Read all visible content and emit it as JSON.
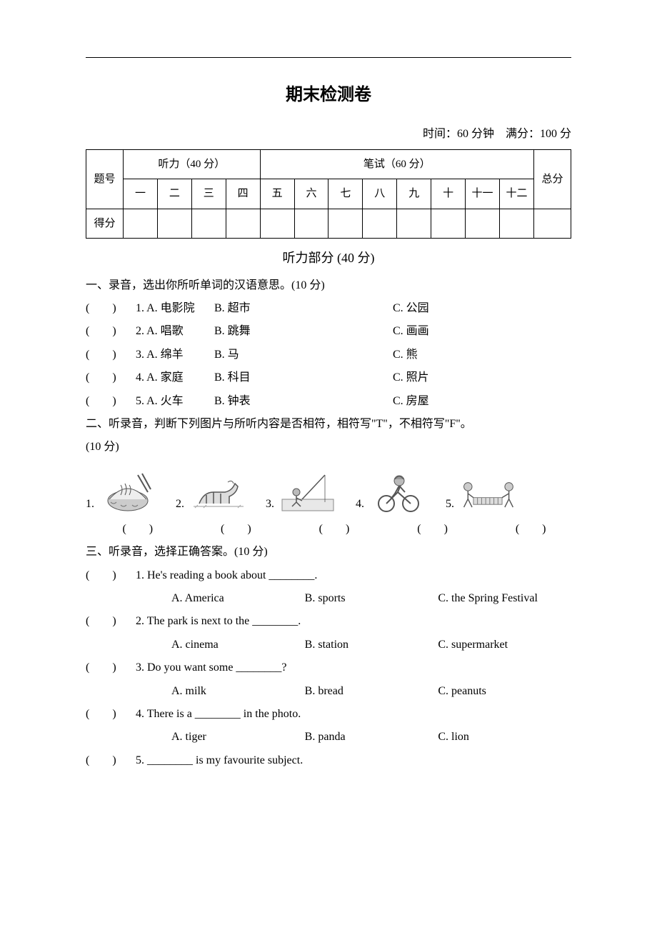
{
  "header_rule": true,
  "title": "期末检测卷",
  "meta": {
    "time_label": "时间：",
    "time_value": "60 分钟",
    "score_label": "满分：",
    "score_value": "100 分"
  },
  "score_table": {
    "听力": "听力（40 分）",
    "笔试": "笔试（60 分）",
    "题号": "题号",
    "总分": "总分",
    "得分": "得分",
    "cols": [
      "一",
      "二",
      "三",
      "四",
      "五",
      "六",
      "七",
      "八",
      "九",
      "十",
      "十一",
      "十二"
    ]
  },
  "listening_heading": "听力部分 (40 分)",
  "q1": {
    "title": "一、录音，选出你所听单词的汉语意思。(10 分)",
    "items": [
      {
        "n": "1",
        "A": "A. 电影院",
        "B": "B. 超市",
        "C": "C. 公园"
      },
      {
        "n": "2",
        "A": "A. 唱歌",
        "B": "B. 跳舞",
        "C": "C. 画画"
      },
      {
        "n": "3",
        "A": "A. 绵羊",
        "B": "B. 马",
        "C": "C. 熊"
      },
      {
        "n": "4",
        "A": "A. 家庭",
        "B": "B. 科目",
        "C": "C. 照片"
      },
      {
        "n": "5",
        "A": "A. 火车",
        "B": "B. 钟表",
        "C": "C. 房屋"
      }
    ]
  },
  "q2": {
    "title": "二、听录音，判断下列图片与所听内容是否相符，相符写\"T\"，不相符写\"F\"。",
    "points": "(10 分)",
    "images": [
      "noodles",
      "horse",
      "fishing",
      "biking",
      "chess"
    ],
    "nums": [
      "1.",
      "2.",
      "3.",
      "4.",
      "5."
    ],
    "brackets": [
      "(　　)",
      "(　　)",
      "(　　)",
      "(　　)",
      "(　　)"
    ]
  },
  "q3": {
    "title": "三、听录音，选择正确答案。(10 分)",
    "items": [
      {
        "n": "1",
        "stem": "He's reading a book about ________. ",
        "A": "A. America",
        "B": "B. sports",
        "C": "C. the Spring Festival"
      },
      {
        "n": "2",
        "stem": "The park is next to the ________. ",
        "A": "A. cinema",
        "B": "B. station",
        "C": "C. supermarket"
      },
      {
        "n": "3",
        "stem": "Do you want some ________?",
        "A": "A. milk",
        "B": "B. bread",
        "C": "C. peanuts"
      },
      {
        "n": "4",
        "stem": "There is a ________ in the photo.",
        "A": "A. tiger",
        "B": "B. panda",
        "C": "C. lion"
      },
      {
        "n": "5",
        "stem": "________ is my favourite subject."
      }
    ]
  },
  "paren": "(　　) "
}
